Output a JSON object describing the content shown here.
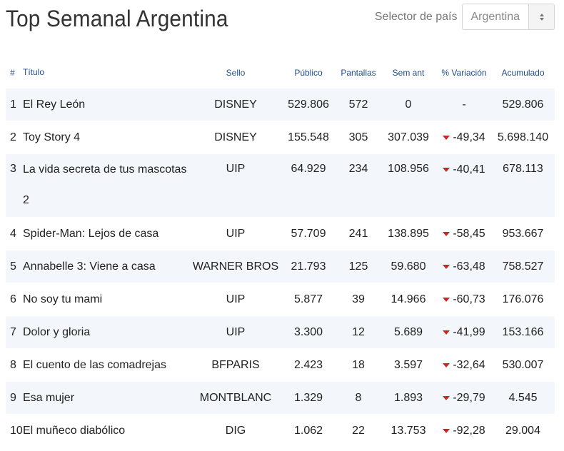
{
  "header": {
    "title": "Top Semanal Argentina",
    "selector_label": "Selector de país",
    "selector_value": "Argentina"
  },
  "table": {
    "columns": {
      "rank": "#",
      "title": "Título",
      "label": "Sello",
      "audience": "Público",
      "screens": "Pantallas",
      "prev_week": "Sem ant",
      "variation": "% Variación",
      "cumulative": "Acumulado"
    },
    "rows": [
      {
        "rank": "1",
        "title": "El Rey León",
        "label": "DISNEY",
        "audience": "529.806",
        "screens": "572",
        "prev_week": "0",
        "variation": "-",
        "trend": "none",
        "cumulative": "529.806"
      },
      {
        "rank": "2",
        "title": "Toy Story 4",
        "label": "DISNEY",
        "audience": "155.548",
        "screens": "305",
        "prev_week": "307.039",
        "variation": "-49,34",
        "trend": "down",
        "cumulative": "5.698.140"
      },
      {
        "rank": "3",
        "title": "La vida secreta de tus mascotas 2",
        "label": "UIP",
        "audience": "64.929",
        "screens": "234",
        "prev_week": "108.956",
        "variation": "-40,41",
        "trend": "down",
        "cumulative": "678.113"
      },
      {
        "rank": "4",
        "title": "Spider-Man: Lejos de casa",
        "label": "UIP",
        "audience": "57.709",
        "screens": "241",
        "prev_week": "138.895",
        "variation": "-58,45",
        "trend": "down",
        "cumulative": "953.667"
      },
      {
        "rank": "5",
        "title": "Annabelle 3: Viene a casa",
        "label": "WARNER BROS",
        "audience": "21.793",
        "screens": "125",
        "prev_week": "59.680",
        "variation": "-63,48",
        "trend": "down",
        "cumulative": "758.527"
      },
      {
        "rank": "6",
        "title": "No soy tu mami",
        "label": "UIP",
        "audience": "5.877",
        "screens": "39",
        "prev_week": "14.966",
        "variation": "-60,73",
        "trend": "down",
        "cumulative": "176.076"
      },
      {
        "rank": "7",
        "title": "Dolor y gloria",
        "label": "UIP",
        "audience": "3.300",
        "screens": "12",
        "prev_week": "5.689",
        "variation": "-41,99",
        "trend": "down",
        "cumulative": "153.166"
      },
      {
        "rank": "8",
        "title": "El cuento de las comadrejas",
        "label": "BFPARIS",
        "audience": "2.423",
        "screens": "18",
        "prev_week": "3.597",
        "variation": "-32,64",
        "trend": "down",
        "cumulative": "530.007"
      },
      {
        "rank": "9",
        "title": "Esa mujer",
        "label": "MONTBLANC",
        "audience": "1.329",
        "screens": "8",
        "prev_week": "1.893",
        "variation": "-29,79",
        "trend": "down",
        "cumulative": "4.545"
      },
      {
        "rank": "10",
        "title": "El muñeco diabólico",
        "label": "DIG",
        "audience": "1.062",
        "screens": "22",
        "prev_week": "13.753",
        "variation": "-92,28",
        "trend": "down",
        "cumulative": "29.004"
      }
    ]
  },
  "colors": {
    "header_text": "#1f4e8c",
    "row_stripe": "#f3f6fb",
    "down_arrow": "#c62828"
  },
  "icons": {
    "trend_down": "caret-down-icon",
    "select_arrows": "chevron-up-down-icon"
  }
}
